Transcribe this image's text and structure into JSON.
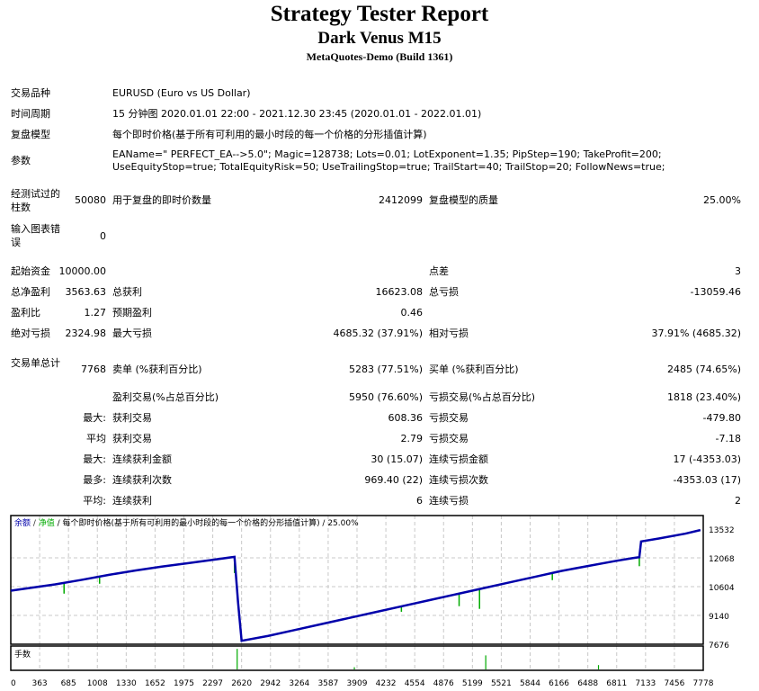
{
  "header": {
    "title": "Strategy Tester Report",
    "subtitle": "Dark Venus M15",
    "server": "MetaQuotes-Demo (Build 1361)"
  },
  "info": {
    "symbol_label": "交易品种",
    "symbol_value": "EURUSD (Euro vs US Dollar)",
    "period_label": "时间周期",
    "period_value": "15 分钟图 2020.01.01 22:00 - 2021.12.30 23:45 (2020.01.01 - 2022.01.01)",
    "model_label": "复盘模型",
    "model_value": "每个即时价格(基于所有可利用的最小时段的每一个价格的分形插值计算)",
    "params_label": "参数",
    "params_line1": "EAName=\" PERFECT_EA-->5.0\"; Magic=128738; Lots=0.01; LotExponent=1.35; PipStep=190; TakeProfit=200;",
    "params_line2": "UseEquityStop=true; TotalEquityRisk=50; UseTrailingStop=true; TrailStart=40; TrailStop=20; FollowNews=true;"
  },
  "bars": {
    "bars_label": "经测试过的柱数",
    "bars_value": "50080",
    "ticks_label": "用于复盘的即时价数量",
    "ticks_value": "2412099",
    "quality_label": "复盘模型的质量",
    "quality_value": "25.00%",
    "errors_label": "输入图表错误",
    "errors_value": "0"
  },
  "stats": {
    "initial_deposit_label": "起始资金",
    "initial_deposit": "10000.00",
    "spread_label": "点差",
    "spread": "3",
    "net_profit_label": "总净盈利",
    "net_profit": "3563.63",
    "gross_profit_label": "总获利",
    "gross_profit": "16623.08",
    "gross_loss_label": "总亏损",
    "gross_loss": "-13059.46",
    "profit_factor_label": "盈利比",
    "profit_factor": "1.27",
    "expected_payoff_label": "预期盈利",
    "expected_payoff": "0.46",
    "abs_drawdown_label": "绝对亏损",
    "abs_drawdown": "2324.98",
    "max_drawdown_label": "最大亏损",
    "max_drawdown": "4685.32 (37.91%)",
    "rel_drawdown_label": "相对亏损",
    "rel_drawdown": "37.91% (4685.32)"
  },
  "trades": {
    "total_label": "交易单总计",
    "total": "7768",
    "short_label": "卖单 (%获利百分比)",
    "short": "5283 (77.51%)",
    "long_label": "买单 (%获利百分比)",
    "long": "2485 (74.65%)",
    "profit_trades_label": "盈利交易(%占总百分比)",
    "profit_trades": "5950 (76.60%)",
    "loss_trades_label": "亏损交易(%占总百分比)",
    "loss_trades": "1818 (23.40%)",
    "largest_prefix": "最大:",
    "largest_profit_label": "获利交易",
    "largest_profit": "608.36",
    "largest_loss_label": "亏损交易",
    "largest_loss": "-479.80",
    "average_prefix": "平均",
    "average_profit_label": "获利交易",
    "average_profit": "2.79",
    "average_loss_label": "亏损交易",
    "average_loss": "-7.18",
    "max_prefix": "最大:",
    "max_cons_wins_label": "连续获利金额",
    "max_cons_wins": "30 (15.07)",
    "max_cons_losses_label": "连续亏损金额",
    "max_cons_losses": "17 (-4353.03)",
    "maximal_prefix": "最多:",
    "maximal_cons_profit_label": "连续获利次数",
    "maximal_cons_profit": "969.40 (22)",
    "maximal_cons_loss_label": "连续亏损次数",
    "maximal_cons_loss": "-4353.03 (17)",
    "avg_cons_prefix": "平均:",
    "avg_cons_wins_label": "连续获利",
    "avg_cons_wins": "6",
    "avg_cons_losses_label": "连续亏损",
    "avg_cons_losses": "2"
  },
  "chart_data": {
    "type": "line",
    "title": "余额 / 净值 / 每个即时价格(基于所有可利用的最小时段的每一个价格的分形插值计算) / 25.00%",
    "legend": [
      {
        "name": "余额",
        "color": "#0000AA"
      },
      {
        "name": "净值",
        "color": "#00AA00"
      }
    ],
    "title_rest": " / 每个即时价格(基于所有可利用的最小时段的每一个价格的分形插值计算) / 25.00%",
    "volume_label": "手数",
    "y_ticks": [
      "13532",
      "12068",
      "10604",
      "9140",
      "7676"
    ],
    "ylim": [
      7676,
      13800
    ],
    "x_ticks": [
      "0",
      "363",
      "685",
      "1008",
      "1330",
      "1652",
      "1975",
      "2297",
      "2620",
      "2942",
      "3264",
      "3587",
      "3909",
      "4232",
      "4554",
      "4876",
      "5199",
      "5521",
      "5844",
      "6166",
      "6488",
      "6811",
      "7133",
      "7456",
      "7778"
    ],
    "xlim": [
      0,
      7800
    ],
    "grid": true,
    "series": [
      {
        "name": "余额",
        "x": [
          0,
          250,
          500,
          800,
          1100,
          1400,
          1700,
          2000,
          2300,
          2520,
          2560,
          2600,
          2900,
          3200,
          3500,
          3800,
          4100,
          4400,
          4700,
          5000,
          5300,
          5600,
          5900,
          6200,
          6500,
          6800,
          7000,
          7080,
          7100,
          7300,
          7600,
          7768
        ],
        "values": [
          10400,
          10560,
          10720,
          10950,
          11200,
          11420,
          11620,
          11800,
          11980,
          12120,
          9800,
          7850,
          8100,
          8400,
          8700,
          9000,
          9300,
          9600,
          9900,
          10200,
          10500,
          10800,
          11100,
          11400,
          11650,
          11900,
          12050,
          12100,
          12900,
          13050,
          13300,
          13480
        ]
      }
    ],
    "volume_spikes": [
      {
        "x": 2550,
        "height": 0.95
      },
      {
        "x": 5350,
        "height": 0.65
      },
      {
        "x": 6620,
        "height": 0.2
      },
      {
        "x": 3870,
        "height": 0.1
      }
    ]
  }
}
